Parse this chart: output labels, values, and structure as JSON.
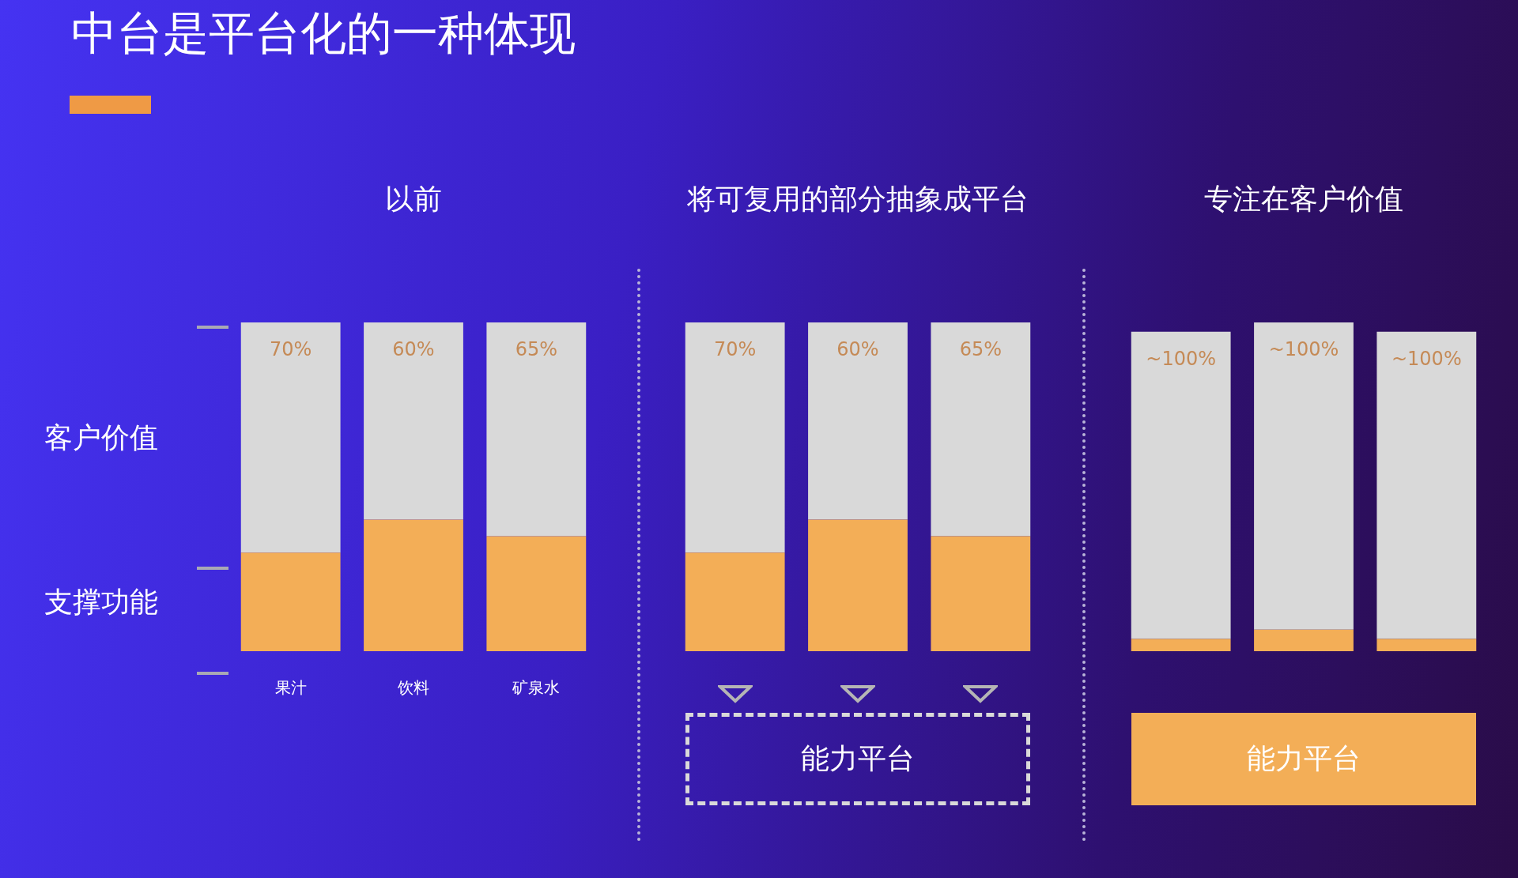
{
  "chart_data": [
    {
      "type": "bar",
      "title": "中台是平台化的一种体现",
      "subtitle": "以前",
      "categories": [
        "果汁",
        "饮料",
        "矿泉水"
      ],
      "stacked": true,
      "series": [
        {
          "name": "支撑功能",
          "color": "#f3ae57",
          "values": [
            30,
            40,
            35
          ]
        },
        {
          "name": "客户价值",
          "color": "#d9d9d9",
          "values": [
            70,
            60,
            65
          ],
          "value_labels": [
            "70%",
            "60%",
            "65%"
          ]
        }
      ]
    },
    {
      "type": "bar",
      "title": "将可复用的部分抽象成平台",
      "categories": [
        null,
        null,
        null
      ],
      "stacked": true,
      "annotations": [
        "能力平台"
      ],
      "series": [
        {
          "color": "#f3ae57",
          "values": [
            30,
            40,
            35
          ]
        },
        {
          "color": "#d9d9d9",
          "values": [
            70,
            60,
            65
          ],
          "value_labels": [
            "70%",
            "60%",
            "65%"
          ]
        }
      ]
    },
    {
      "type": "bar",
      "title": "专注在客户价值",
      "categories": [
        null,
        null,
        null
      ],
      "stacked": true,
      "annotations": [
        "能力平台"
      ],
      "series": [
        {
          "color": "#f3ae57",
          "values": [
            4,
            7,
            4
          ]
        },
        {
          "color": "#d9d9d9",
          "values": [
            100,
            100,
            100
          ],
          "value_labels": [
            "~100%",
            "~100%",
            "~100%"
          ]
        }
      ]
    }
  ]
}
